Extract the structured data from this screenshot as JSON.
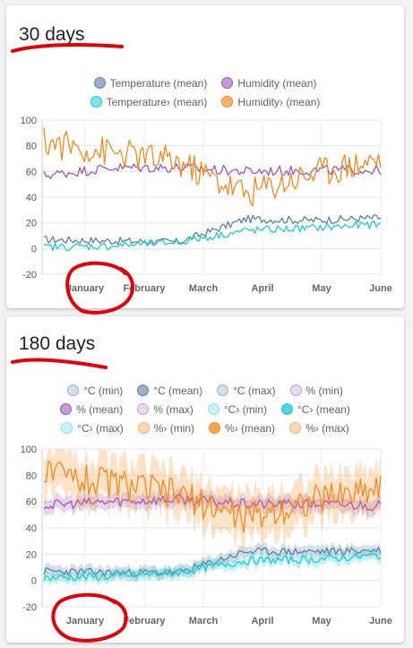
{
  "cards": [
    {
      "title": "30 days",
      "legend_rows": [
        [
          {
            "label": "Temperature (mean)",
            "fill": "#9bb0c8",
            "border": "#5f7fa3"
          },
          {
            "label": "Humidity (mean)",
            "fill": "#c39bd3",
            "border": "#9b59b6"
          }
        ],
        [
          {
            "label": "Temperature› (mean)",
            "fill": "#7ee8e8",
            "border": "#1ecbd0"
          },
          {
            "label": "Humidity› (mean)",
            "fill": "#f8b26a",
            "border": "#f28a1e"
          }
        ]
      ]
    },
    {
      "title": "180 days",
      "legend_rows": [
        [
          {
            "label": "°C (min)",
            "fill": "#d5dfea",
            "border": "#9bb0c8"
          },
          {
            "label": "°C (mean)",
            "fill": "#9bb0c8",
            "border": "#5f7fa3"
          },
          {
            "label": "°C (max)",
            "fill": "#d5dfea",
            "border": "#9bb0c8"
          },
          {
            "label": "% (min)",
            "fill": "#ead9f0",
            "border": "#c39bd3"
          }
        ],
        [
          {
            "label": "% (mean)",
            "fill": "#c39bd3",
            "border": "#9b59b6"
          },
          {
            "label": "% (max)",
            "fill": "#ead9f0",
            "border": "#c39bd3"
          },
          {
            "label": "°C› (min)",
            "fill": "#c9f4f4",
            "border": "#7ee8e8"
          },
          {
            "label": "°C› (mean)",
            "fill": "#4ed6d8",
            "border": "#1ecbd0"
          }
        ],
        [
          {
            "label": "°C› (max)",
            "fill": "#c9f4f4",
            "border": "#7ee8e8"
          },
          {
            "label": "%› (min)",
            "fill": "#fbd9b6",
            "border": "#f8b26a"
          },
          {
            "label": "%› (mean)",
            "fill": "#f8a54a",
            "border": "#f28a1e"
          },
          {
            "label": "%› (max)",
            "fill": "#fbd9b6",
            "border": "#f8b26a"
          }
        ]
      ]
    }
  ],
  "chart_data": [
    {
      "type": "line",
      "x": [
        "January",
        "February",
        "March",
        "April",
        "May",
        "June"
      ],
      "ylim": [
        -20,
        100
      ],
      "yticks": [
        "100",
        "80",
        "60",
        "40",
        "20",
        "0",
        "-20"
      ],
      "grid": true,
      "legend": "top",
      "series": [
        {
          "name": "Temperature (mean)",
          "color": "#5f7fa3",
          "values": [
            7,
            6,
            5,
            23,
            22,
            24
          ]
        },
        {
          "name": "Humidity (mean)",
          "color": "#9b59b6",
          "values": [
            57,
            63,
            63,
            60,
            61,
            61
          ]
        },
        {
          "name": "Temperature› (mean)",
          "color": "#1ecbd0",
          "values": [
            1,
            2,
            5,
            14,
            16,
            19
          ]
        },
        {
          "name": "Humidity› (mean)",
          "color": "#f28a1e",
          "values": [
            83,
            75,
            67,
            43,
            59,
            70
          ]
        }
      ]
    },
    {
      "type": "area",
      "x": [
        "January",
        "February",
        "March",
        "April",
        "May",
        "June"
      ],
      "ylim": [
        -20,
        100
      ],
      "yticks": [
        "100",
        "80",
        "60",
        "40",
        "20",
        "0",
        "-20"
      ],
      "grid": true,
      "legend": "top",
      "series": [
        {
          "name": "°C (mean)",
          "color": "#5f7fa3",
          "values": [
            7,
            6,
            6,
            22,
            22,
            23
          ]
        },
        {
          "name": "% (mean)",
          "color": "#9b59b6",
          "values": [
            57,
            60,
            62,
            58,
            58,
            57
          ]
        },
        {
          "name": "°C› (mean)",
          "color": "#1ecbd0",
          "values": [
            2,
            3,
            6,
            15,
            16,
            19
          ]
        },
        {
          "name": "%› (mean)",
          "color": "#f28a1e",
          "values": [
            82,
            75,
            65,
            47,
            61,
            72
          ]
        }
      ]
    }
  ]
}
